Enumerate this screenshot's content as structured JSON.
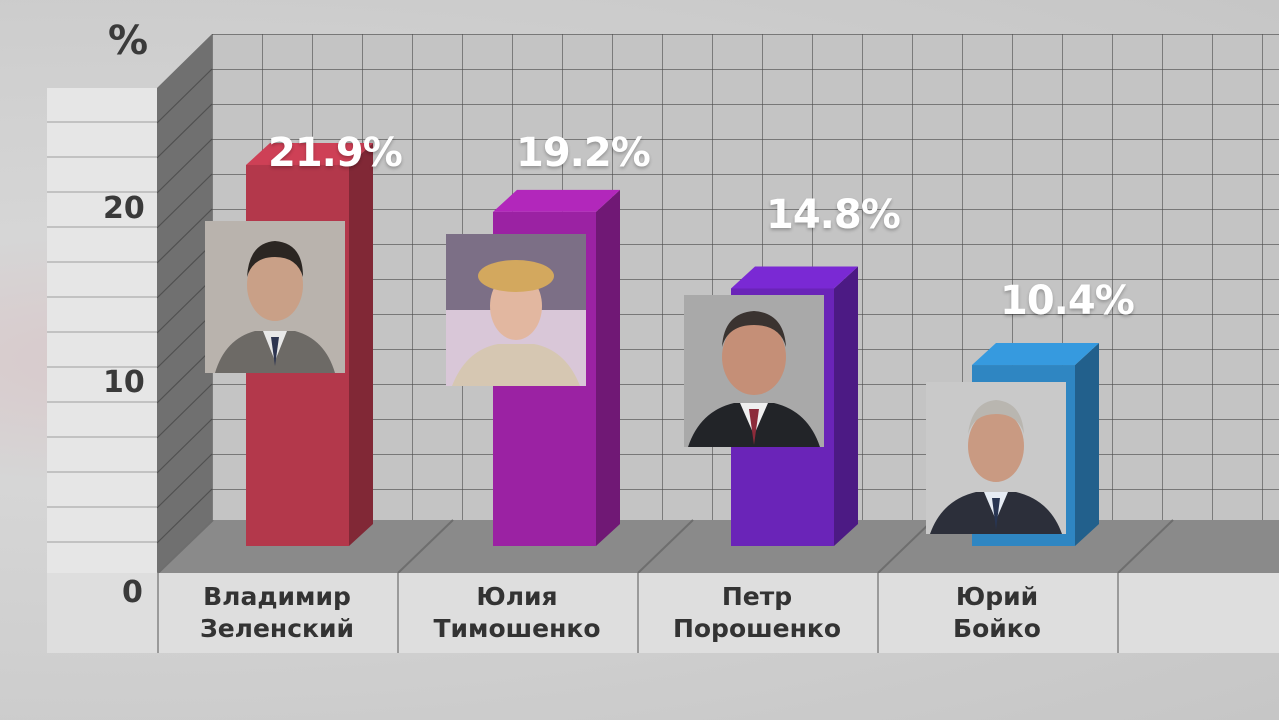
{
  "chart_data": {
    "type": "bar",
    "unit": "%",
    "ylim": [
      0,
      27
    ],
    "yticks": [
      "0",
      "10",
      "20"
    ],
    "categories": [
      [
        "Владимир",
        "Зеленский"
      ],
      [
        "Юлия",
        "Тимошенко"
      ],
      [
        "Петр",
        "Порошенко"
      ],
      [
        "Юрий",
        "Бойко"
      ]
    ],
    "values": [
      21.9,
      19.2,
      14.8,
      10.4
    ],
    "value_labels": [
      "21.9%",
      "19.2%",
      "14.8%",
      "10.4%"
    ],
    "colors": [
      "#b3384b",
      "#9b22a3",
      "#6a24b8",
      "#2f86c2"
    ]
  },
  "photos": [
    "portrait-zelensky",
    "portrait-tymoshenko",
    "portrait-poroshenko",
    "portrait-boyko"
  ]
}
